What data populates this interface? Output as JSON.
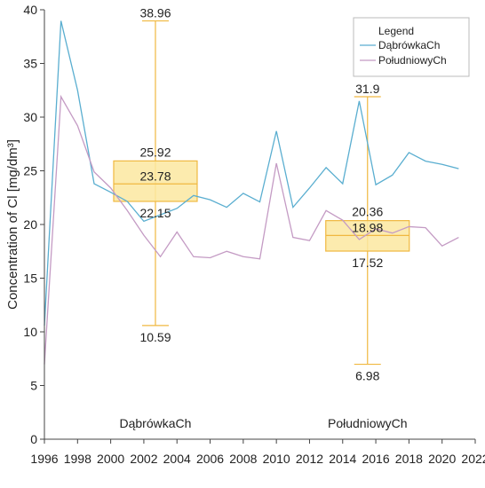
{
  "chart_data": {
    "type": "line",
    "ylabel": "Concentration of Cl [mg/dm³]",
    "xlim": [
      1996,
      2022
    ],
    "ylim": [
      0,
      40
    ],
    "x_ticks": [
      "1996",
      "1998",
      "2000",
      "2002",
      "2004",
      "2006",
      "2008",
      "2010",
      "2012",
      "2014",
      "2016",
      "2018",
      "2020",
      "2022"
    ],
    "y_ticks": [
      "0",
      "5",
      "10",
      "15",
      "20",
      "25",
      "30",
      "35",
      "40"
    ],
    "grid": false,
    "legend": {
      "title": "Legend",
      "position": "top-right"
    },
    "series": [
      {
        "name": "DąbrówkaCh",
        "color": "#5aaed0",
        "x": [
          1996,
          1997,
          1998,
          1999,
          2000,
          2001,
          2002,
          2003,
          2004,
          2005,
          2006,
          2007,
          2008,
          2009,
          2010,
          2011,
          2012,
          2013,
          2014,
          2015,
          2016,
          2017,
          2018,
          2019,
          2020,
          2021
        ],
        "y": [
          10.59,
          38.96,
          32.5,
          23.8,
          23.0,
          22.15,
          20.3,
          20.9,
          21.5,
          22.7,
          22.3,
          21.6,
          22.9,
          22.1,
          28.7,
          21.6,
          23.4,
          25.3,
          23.8,
          31.5,
          23.7,
          24.6,
          26.7,
          25.9,
          25.6,
          25.2
        ]
      },
      {
        "name": "PołudniowyCh",
        "color": "#c49bc4",
        "x": [
          1996,
          1997,
          1998,
          1999,
          2000,
          2001,
          2002,
          2003,
          2004,
          2005,
          2006,
          2007,
          2008,
          2009,
          2010,
          2011,
          2012,
          2013,
          2014,
          2015,
          2016,
          2017,
          2018,
          2019,
          2020,
          2021
        ],
        "y": [
          6.98,
          31.9,
          29.2,
          24.9,
          23.4,
          21.3,
          19.0,
          17.0,
          19.3,
          17.0,
          16.9,
          17.5,
          17.0,
          16.8,
          25.7,
          18.8,
          18.5,
          21.3,
          20.4,
          18.6,
          19.6,
          19.2,
          19.8,
          19.7,
          18.0,
          18.8
        ]
      }
    ],
    "boxes": [
      {
        "group": "DąbrówkaCh",
        "x": 2002.7,
        "min": 10.59,
        "q1": 22.15,
        "median": 23.78,
        "q3": 25.92,
        "max": 38.96,
        "min_label": "10.59",
        "q1_label": "22.15",
        "median_label": "23.78",
        "q3_label": "25.92",
        "max_label": "38.96"
      },
      {
        "group": "PołudniowyCh",
        "x": 2015.5,
        "min": 6.98,
        "q1": 17.52,
        "median": 18.98,
        "q3": 20.36,
        "max": 31.9,
        "min_label": "6.98",
        "q1_label": "17.52",
        "median_label": "18.98",
        "q3_label": "20.36",
        "max_label": "31.9"
      }
    ],
    "group_labels": [
      {
        "text": "DąbrówkaCh",
        "x": 2002.7
      },
      {
        "text": "PołudniowyCh",
        "x": 2015.5
      }
    ],
    "box_color": "#f0b840",
    "box_fill": "#fbe7a0"
  }
}
